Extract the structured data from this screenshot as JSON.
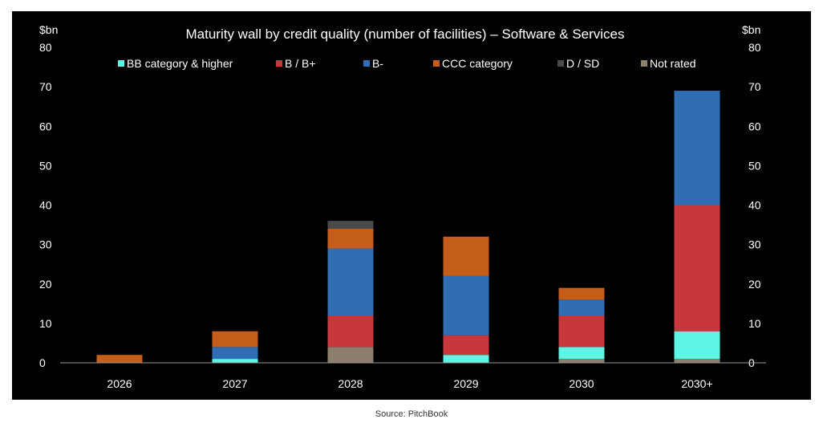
{
  "source": "Source: PitchBook",
  "chart_data": {
    "type": "bar",
    "stacked": true,
    "title": "Maturity wall by credit quality (number of facilities) – Software & Services",
    "ylabel_left": "$bn",
    "ylabel_right": "$bn",
    "ylim": [
      0,
      80
    ],
    "yticks": [
      0,
      10,
      20,
      30,
      40,
      50,
      60,
      70,
      80
    ],
    "legend_position": "top",
    "categories": [
      "2026",
      "2027",
      "2028",
      "2029",
      "2030",
      "2030+"
    ],
    "series": [
      {
        "name": "Not rated",
        "color": "#8c7f6e",
        "values": [
          0,
          0,
          4,
          0,
          1,
          1
        ]
      },
      {
        "name": "BB category & higher",
        "color": "#5ff5e4",
        "values": [
          0,
          1,
          0,
          2,
          3,
          7
        ]
      },
      {
        "name": "B / B+",
        "color": "#c8373b",
        "values": [
          0,
          0,
          8,
          5,
          8,
          32
        ]
      },
      {
        "name": "B-",
        "color": "#2f6db5",
        "values": [
          0,
          3,
          17,
          15,
          4,
          29
        ]
      },
      {
        "name": "CCC category",
        "color": "#c45e1a",
        "values": [
          2,
          4,
          5,
          10,
          3,
          0
        ]
      },
      {
        "name": "D / SD",
        "color": "#4a4a4a",
        "values": [
          0,
          0,
          2,
          0,
          0,
          0
        ]
      }
    ],
    "legend_order": [
      "BB category & higher",
      "B / B+",
      "B-",
      "CCC category",
      "D / SD",
      "Not rated"
    ]
  }
}
